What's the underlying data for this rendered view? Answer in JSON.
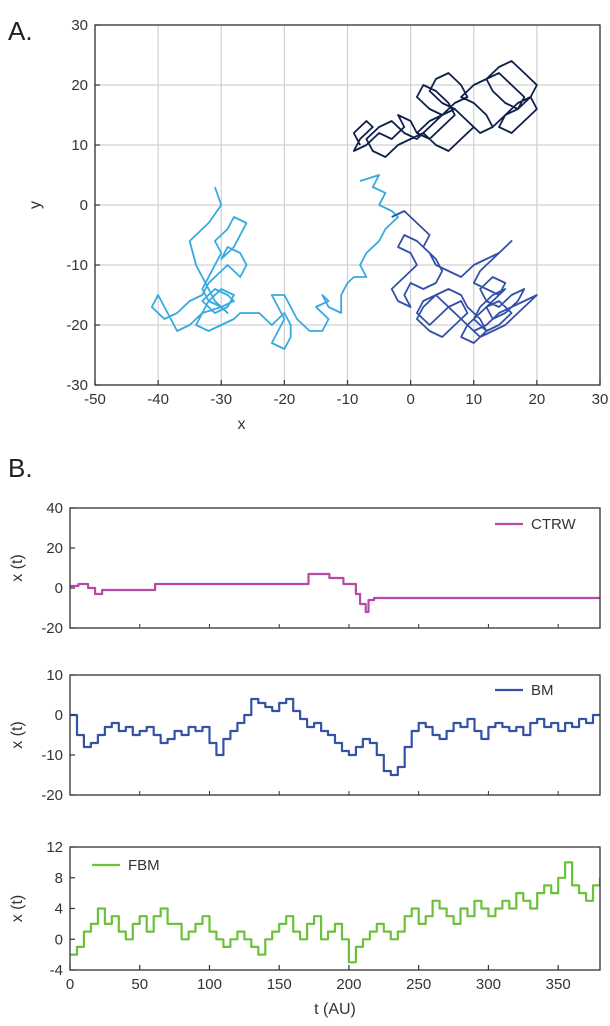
{
  "panels": {
    "a_label": "A.",
    "b_label": "B."
  },
  "colors": {
    "walk_light": "#36a9e1",
    "walk_mid": "#3350a8",
    "walk_dark": "#0e1f4a",
    "ctrw": "#b84aa3",
    "bm": "#3453a6",
    "fbm": "#6cc13b",
    "grid": "#d0d0d0",
    "axis": "#333333"
  },
  "chart_data": [
    {
      "id": "A",
      "type": "line",
      "xlabel": "x",
      "ylabel": "y",
      "xlim": [
        -50,
        30
      ],
      "ylim": [
        -30,
        30
      ],
      "xticks": [
        -50,
        -40,
        -30,
        -20,
        -10,
        0,
        10,
        20,
        30
      ],
      "yticks": [
        -30,
        -20,
        -10,
        0,
        10,
        20,
        30
      ],
      "xtick_labels": [
        "-50",
        "-40",
        "-30",
        "-20",
        "-10",
        "0",
        "10",
        "20",
        "30"
      ],
      "ytick_labels": [
        "-30",
        "-20",
        "-10",
        "0",
        "10",
        "20",
        "30"
      ],
      "grid": true,
      "series": [
        {
          "color_key": "walk_light",
          "x": [
            -8,
            -5,
            -6,
            -4,
            -5,
            -3,
            -2,
            -4,
            -5,
            -7,
            -8,
            -7,
            -9,
            -10,
            -11,
            -11,
            -13,
            -14,
            -13,
            -15,
            -13,
            -14,
            -16,
            -18,
            -19,
            -20,
            -22,
            -21,
            -20,
            -21,
            -22,
            -20,
            -19,
            -19,
            -20,
            -22,
            -24,
            -27,
            -28,
            -30,
            -32,
            -34,
            -33,
            -30,
            -28,
            -29,
            -31,
            -33,
            -31,
            -29,
            -28,
            -30,
            -32,
            -33,
            -35,
            -37,
            -38,
            -40,
            -41,
            -39,
            -37,
            -35,
            -33,
            -32,
            -30,
            -29,
            -27,
            -26,
            -27,
            -29,
            -30,
            -28,
            -27,
            -26,
            -28,
            -29,
            -31,
            -30,
            -31,
            -32,
            -33,
            -32,
            -30,
            -29,
            -31,
            -32,
            -33,
            -34,
            -35,
            -32,
            -30,
            -31
          ],
          "y": [
            4,
            5,
            3,
            2,
            0,
            -1,
            -2,
            -4,
            -6,
            -8,
            -10,
            -12,
            -12,
            -13,
            -15,
            -18,
            -17,
            -15,
            -16,
            -17,
            -19,
            -21,
            -21,
            -19,
            -17,
            -15,
            -15,
            -17,
            -19,
            -21,
            -23,
            -24,
            -22,
            -20,
            -18,
            -20,
            -18,
            -18,
            -19,
            -20,
            -21,
            -20,
            -18,
            -17,
            -16,
            -15,
            -14,
            -16,
            -18,
            -17,
            -15,
            -14,
            -16,
            -18,
            -20,
            -21,
            -19,
            -15,
            -17,
            -19,
            -18,
            -16,
            -15,
            -13,
            -11,
            -10,
            -12,
            -10,
            -8,
            -7,
            -9,
            -7,
            -5,
            -3,
            -2,
            -4,
            -6,
            -8,
            -10,
            -12,
            -14,
            -16,
            -17,
            -18,
            -16,
            -14,
            -12,
            -10,
            -6,
            -3,
            0,
            3
          ]
        },
        {
          "color_key": "walk_mid",
          "x": [
            -3,
            -1,
            1,
            3,
            2,
            4,
            5,
            4,
            2,
            0,
            -1,
            0,
            -2,
            -3,
            -1,
            1,
            0,
            -2,
            -1,
            1,
            3,
            4,
            6,
            8,
            10,
            12,
            14,
            16,
            15,
            13,
            11,
            10,
            12,
            14,
            15,
            13,
            11,
            12,
            14,
            16,
            18,
            17,
            15,
            13,
            12,
            14,
            16,
            14,
            12,
            10,
            11,
            13,
            15,
            13,
            11,
            9,
            8,
            10,
            12,
            11,
            9,
            8,
            6,
            4,
            2,
            1,
            3,
            5,
            7,
            9,
            8,
            6,
            4,
            3,
            1,
            2,
            4,
            6,
            8,
            10,
            12,
            14,
            16,
            18,
            20,
            19,
            17,
            15,
            13,
            11,
            9,
            11,
            13
          ],
          "y": [
            -2,
            -1,
            -3,
            -5,
            -7,
            -9,
            -11,
            -13,
            -14,
            -13,
            -15,
            -17,
            -16,
            -14,
            -12,
            -10,
            -8,
            -7,
            -5,
            -6,
            -8,
            -10,
            -11,
            -12,
            -10,
            -9,
            -8,
            -6,
            -7,
            -9,
            -11,
            -13,
            -14,
            -15,
            -13,
            -12,
            -14,
            -16,
            -17,
            -15,
            -14,
            -16,
            -18,
            -19,
            -17,
            -16,
            -18,
            -20,
            -21,
            -19,
            -17,
            -15,
            -14,
            -16,
            -18,
            -20,
            -22,
            -23,
            -21,
            -19,
            -17,
            -15,
            -14,
            -15,
            -17,
            -19,
            -21,
            -22,
            -20,
            -18,
            -16,
            -17,
            -19,
            -20,
            -18,
            -16,
            -15,
            -17,
            -19,
            -21,
            -20,
            -18,
            -17,
            -16,
            -15,
            -16,
            -18,
            -20,
            -21,
            -22,
            -20,
            -18,
            -16
          ]
        },
        {
          "color_key": "walk_dark",
          "x": [
            -8,
            -9,
            -7,
            -6,
            -8,
            -9,
            -7,
            -5,
            -3,
            -1,
            -2,
            0,
            1,
            3,
            5,
            7,
            6,
            4,
            2,
            1,
            3,
            5,
            7,
            9,
            8,
            6,
            4,
            3,
            5,
            7,
            9,
            11,
            13,
            12,
            10,
            8,
            10,
            12,
            14,
            16,
            18,
            17,
            15,
            13,
            12,
            14,
            16,
            18,
            20,
            19,
            17,
            15,
            14,
            16,
            18,
            20,
            19,
            17,
            15,
            13,
            11,
            9,
            7,
            5,
            3,
            1,
            -1,
            -3,
            -5,
            -7,
            -6,
            -4,
            -2,
            0,
            2,
            4,
            6,
            8,
            10,
            9,
            7,
            5,
            3,
            1
          ],
          "y": [
            10,
            12,
            14,
            13,
            11,
            9,
            10,
            12,
            11,
            13,
            15,
            14,
            12,
            11,
            13,
            15,
            17,
            19,
            20,
            18,
            16,
            15,
            17,
            18,
            20,
            22,
            21,
            19,
            17,
            16,
            14,
            12,
            13,
            15,
            17,
            18,
            20,
            21,
            22,
            20,
            18,
            16,
            17,
            19,
            21,
            23,
            24,
            22,
            20,
            18,
            16,
            15,
            13,
            12,
            14,
            16,
            18,
            17,
            15,
            13,
            12,
            14,
            16,
            15,
            13,
            11,
            12,
            14,
            13,
            11,
            9,
            8,
            10,
            11,
            12,
            10,
            9,
            11,
            13,
            14,
            16,
            15,
            14,
            12
          ]
        }
      ]
    },
    {
      "id": "B1",
      "type": "line",
      "xlabel": "",
      "ylabel": "x (t)",
      "xlim": [
        0,
        380
      ],
      "ylim": [
        -20,
        40
      ],
      "yticks": [
        -20,
        0,
        20,
        40
      ],
      "ytick_labels": [
        "-20",
        "0",
        "20",
        "40"
      ],
      "grid": false,
      "legend": "top-right",
      "series": [
        {
          "name": "CTRW",
          "color_key": "ctrw",
          "x": [
            0,
            5,
            6,
            12,
            13,
            17,
            18,
            22,
            23,
            30,
            31,
            60,
            61,
            170,
            171,
            185,
            186,
            195,
            196,
            200,
            205,
            208,
            212,
            214,
            218,
            220,
            221,
            380
          ],
          "y": [
            1,
            1,
            2,
            2,
            0,
            0,
            -3,
            -3,
            -1,
            -1,
            -1,
            -1,
            2,
            2,
            7,
            7,
            5,
            5,
            2,
            2,
            -3,
            -8,
            -12,
            -6,
            -5,
            -5,
            -5,
            -5
          ]
        }
      ]
    },
    {
      "id": "B2",
      "type": "line",
      "xlabel": "",
      "ylabel": "x (t)",
      "xlim": [
        0,
        380
      ],
      "ylim": [
        -20,
        10
      ],
      "yticks": [
        -20,
        -10,
        0,
        10
      ],
      "ytick_labels": [
        "-20",
        "-10",
        "0",
        "10"
      ],
      "grid": false,
      "legend": "top-right",
      "series": [
        {
          "name": "BM",
          "color_key": "bm",
          "x": [
            0,
            5,
            10,
            15,
            20,
            25,
            30,
            35,
            40,
            45,
            50,
            55,
            60,
            65,
            70,
            75,
            80,
            85,
            90,
            95,
            100,
            105,
            110,
            115,
            120,
            125,
            130,
            135,
            140,
            145,
            150,
            155,
            160,
            165,
            170,
            175,
            180,
            185,
            190,
            195,
            200,
            205,
            210,
            215,
            220,
            225,
            230,
            235,
            240,
            245,
            250,
            255,
            260,
            265,
            270,
            275,
            280,
            285,
            290,
            295,
            300,
            305,
            310,
            315,
            320,
            325,
            330,
            335,
            340,
            345,
            350,
            355,
            360,
            365,
            370,
            375,
            380
          ],
          "y": [
            0,
            -5,
            -8,
            -7,
            -5,
            -3,
            -2,
            -4,
            -3,
            -5,
            -4,
            -3,
            -5,
            -7,
            -6,
            -4,
            -5,
            -3,
            -4,
            -3,
            -7,
            -10,
            -6,
            -4,
            -2,
            0,
            4,
            3,
            2,
            1,
            3,
            4,
            1,
            -1,
            -3,
            -2,
            -4,
            -5,
            -7,
            -9,
            -10,
            -8,
            -6,
            -7,
            -10,
            -14,
            -15,
            -13,
            -8,
            -4,
            -2,
            -3,
            -5,
            -6,
            -4,
            -2,
            -3,
            -1,
            -4,
            -6,
            -3,
            -2,
            -3,
            -4,
            -3,
            -5,
            -2,
            -1,
            -3,
            -2,
            -4,
            -2,
            -3,
            -1,
            -2,
            0,
            0
          ]
        }
      ]
    },
    {
      "id": "B3",
      "type": "line",
      "xlabel": "t (AU)",
      "ylabel": "x (t)",
      "xlim": [
        0,
        380
      ],
      "ylim": [
        -4,
        12
      ],
      "xticks": [
        0,
        50,
        100,
        150,
        200,
        250,
        300,
        350
      ],
      "xtick_labels": [
        "0",
        "50",
        "100",
        "150",
        "200",
        "250",
        "300",
        "350"
      ],
      "yticks": [
        -4,
        0,
        4,
        8,
        12
      ],
      "ytick_labels": [
        "-4",
        "0",
        "4",
        "8",
        "12"
      ],
      "grid": false,
      "legend": "top-left",
      "series": [
        {
          "name": "FBM",
          "color_key": "fbm",
          "x": [
            0,
            5,
            10,
            15,
            20,
            25,
            30,
            35,
            40,
            45,
            50,
            55,
            60,
            65,
            70,
            75,
            80,
            85,
            90,
            95,
            100,
            105,
            110,
            115,
            120,
            125,
            130,
            135,
            140,
            145,
            150,
            155,
            160,
            165,
            170,
            175,
            180,
            185,
            190,
            195,
            200,
            205,
            210,
            215,
            220,
            225,
            230,
            235,
            240,
            245,
            250,
            255,
            260,
            265,
            270,
            275,
            280,
            285,
            290,
            295,
            300,
            305,
            310,
            315,
            320,
            325,
            330,
            335,
            340,
            345,
            350,
            355,
            360,
            365,
            370,
            375,
            380
          ],
          "y": [
            -2,
            -1,
            1,
            2,
            4,
            2,
            3,
            1,
            0,
            2,
            3,
            1,
            3,
            4,
            2,
            2,
            0,
            1,
            2,
            3,
            1,
            0,
            -1,
            0,
            1,
            0,
            -1,
            -2,
            0,
            1,
            2,
            3,
            1,
            0,
            2,
            3,
            0,
            1,
            2,
            0,
            -3,
            -1,
            0,
            1,
            2,
            1,
            0,
            1,
            3,
            4,
            2,
            3,
            5,
            4,
            3,
            2,
            4,
            3,
            5,
            4,
            3,
            4,
            5,
            4,
            6,
            5,
            4,
            6,
            7,
            6,
            8,
            10,
            7,
            6,
            5,
            7,
            8
          ]
        }
      ]
    }
  ]
}
